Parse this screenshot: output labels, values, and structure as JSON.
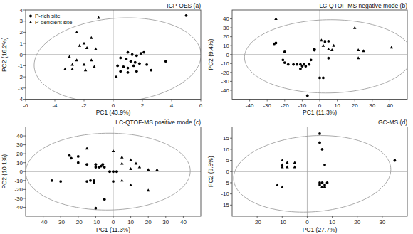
{
  "chart_data": [
    {
      "type": "scatter",
      "title": "ICP-OES (a)",
      "x_label": "PC1 (43.9%)",
      "y_label": "PC2 (16.2%)",
      "xlim": [
        -6,
        6
      ],
      "ylim": [
        -4,
        4
      ],
      "xticks": [
        -6,
        -4,
        -2,
        0,
        2,
        4,
        6
      ],
      "yticks": [
        -4,
        -3,
        -2,
        -1,
        0,
        1,
        2,
        3,
        4
      ],
      "legend": "upper left",
      "hline": 0,
      "vline": 0,
      "ellipse": {
        "cx": 0.3,
        "cy": -0.5,
        "width": 11.5,
        "height": 7.5,
        "angle": 8,
        "color": "#aaaaaa"
      },
      "series": [
        {
          "name": "P-rich site",
          "marker": "circle",
          "color": "black",
          "x": [
            1.0,
            1.3,
            1.6,
            1.9,
            2.1,
            0.5,
            0.9,
            1.2,
            1.5,
            1.8,
            2.3,
            0.3,
            0.7,
            1.0,
            1.4,
            0.5,
            1.0,
            1.6,
            2.6,
            3.6,
            0.2,
            5.0
          ],
          "values": [
            0.2,
            0.0,
            -0.1,
            0.1,
            0.2,
            -0.3,
            -0.4,
            -0.6,
            -0.7,
            -0.8,
            -0.9,
            -1.0,
            -1.1,
            -1.2,
            -1.0,
            -1.5,
            -1.6,
            -1.5,
            -1.4,
            -0.6,
            -2.0,
            3.5
          ]
        },
        {
          "name": "P-deficient site",
          "marker": "triangle",
          "color": "black",
          "x": [
            -1.0,
            -2.5,
            -1.5,
            -2.0,
            -2.3,
            -1.8,
            -1.2,
            -3.0,
            -2.5,
            -1.5,
            -2.8,
            -2.0,
            -1.3,
            -3.3,
            -2.8,
            -1.9
          ],
          "values": [
            3.3,
            2.0,
            1.5,
            1.0,
            0.8,
            0.6,
            0.5,
            -0.2,
            -0.5,
            -0.5,
            -0.9,
            -0.9,
            -1.1,
            -1.3,
            -1.3,
            -1.4
          ]
        }
      ]
    },
    {
      "type": "scatter",
      "title": "LC-QTOF-MS negative mode (b)",
      "x_label": "PC1 (11.3%)",
      "y_label": "PC2 (9.4%)",
      "xlim": [
        -50,
        50
      ],
      "ylim": [
        -50,
        50
      ],
      "xticks": [
        -40,
        -30,
        -20,
        -10,
        0,
        10,
        20,
        30,
        40
      ],
      "yticks": [
        -40,
        -30,
        -20,
        -10,
        0,
        10,
        20,
        30,
        40
      ],
      "hline": 0,
      "vline": 0,
      "ellipse": {
        "cx": 5,
        "cy": -2,
        "width": 96,
        "height": 82,
        "angle": 5,
        "color": "#aaaaaa"
      },
      "series": [
        {
          "marker": "circle",
          "color": "black",
          "x": [
            -26,
            -25,
            -20,
            -21,
            -20,
            -18,
            -15,
            -13,
            -11,
            -10,
            -9,
            -6,
            -8,
            -11,
            -7,
            2,
            0,
            -5,
            -3,
            -3,
            5,
            5,
            3
          ],
          "values": [
            12,
            13,
            3,
            -6,
            -9,
            -11,
            -11,
            -11,
            -11,
            -13,
            -11,
            -11,
            -13,
            -16,
            -46,
            -26,
            -26,
            -6,
            6,
            5,
            -4,
            15,
            15
          ]
        },
        {
          "marker": "triangle",
          "color": "black",
          "x": [
            -25,
            1,
            3,
            5,
            7,
            22,
            25,
            22,
            41,
            20,
            2,
            8
          ],
          "values": [
            40,
            16,
            14,
            6,
            5,
            5,
            4,
            -4,
            8,
            30,
            10,
            10
          ]
        }
      ]
    },
    {
      "type": "scatter",
      "title": "LC-QTOF-MS positive mode (c)",
      "x_label": "PC1 (11.3%)",
      "y_label": "PC2 (10.1%)",
      "xlim": [
        -50,
        50
      ],
      "ylim": [
        -50,
        50
      ],
      "xticks": [
        -40,
        -30,
        -20,
        -10,
        0,
        10,
        20,
        30,
        40
      ],
      "yticks": [
        -40,
        -30,
        -20,
        -10,
        0,
        10,
        20,
        30,
        40
      ],
      "hline": 0,
      "vline": 0,
      "ellipse": {
        "cx": -3,
        "cy": 0,
        "width": 94,
        "height": 86,
        "angle": 5,
        "color": "#aaaaaa"
      },
      "series": [
        {
          "marker": "circle",
          "color": "black",
          "x": [
            -35,
            -30,
            -25,
            -24,
            -20,
            -20,
            -15,
            -10,
            -10,
            -8,
            -7,
            -6,
            -5,
            -11,
            -11,
            -13,
            -15,
            -5,
            -10,
            0,
            -2,
            0,
            2
          ],
          "values": [
            -10,
            -11,
            18,
            15,
            17,
            10,
            8,
            8,
            5,
            5,
            6,
            8,
            5,
            -10,
            -12,
            -10,
            -11,
            -31,
            -41,
            -11,
            0,
            0,
            0
          ]
        },
        {
          "marker": "triangle",
          "color": "black",
          "x": [
            -15,
            0,
            5,
            10,
            5,
            13,
            15,
            10,
            20,
            25,
            5,
            10,
            20
          ],
          "values": [
            26,
            23,
            16,
            13,
            9,
            9,
            5,
            3,
            2,
            2,
            -10,
            -15,
            -21
          ]
        }
      ]
    },
    {
      "type": "scatter",
      "title": "GC-MS (d)",
      "x_label": "PC1 (27.7%)",
      "y_label": "PC2 (9.5%)",
      "xlim": [
        -30,
        40
      ],
      "ylim": [
        -20,
        20
      ],
      "xticks": [
        -20,
        -10,
        0,
        10,
        20,
        30
      ],
      "yticks": [
        -15,
        -10,
        -5,
        0,
        5,
        10,
        15
      ],
      "hline": 0,
      "vline": 0,
      "ellipse": {
        "cx": 2,
        "cy": -1,
        "width": 63,
        "height": 34,
        "angle": 5,
        "color": "#aaaaaa"
      },
      "series": [
        {
          "marker": "circle",
          "color": "black",
          "x": [
            5,
            5,
            6,
            7,
            5,
            6,
            7,
            5,
            6,
            7,
            8,
            35
          ],
          "values": [
            17,
            13,
            10,
            3,
            -5,
            -5,
            -6,
            -6,
            -7,
            -7,
            -5,
            5
          ]
        },
        {
          "marker": "triangle",
          "color": "black",
          "x": [
            -10,
            -10,
            -10,
            -8,
            -8,
            -5,
            -5,
            -12,
            -10
          ],
          "values": [
            5,
            3,
            2,
            4,
            2,
            4,
            2,
            -6,
            -7
          ]
        }
      ]
    }
  ]
}
